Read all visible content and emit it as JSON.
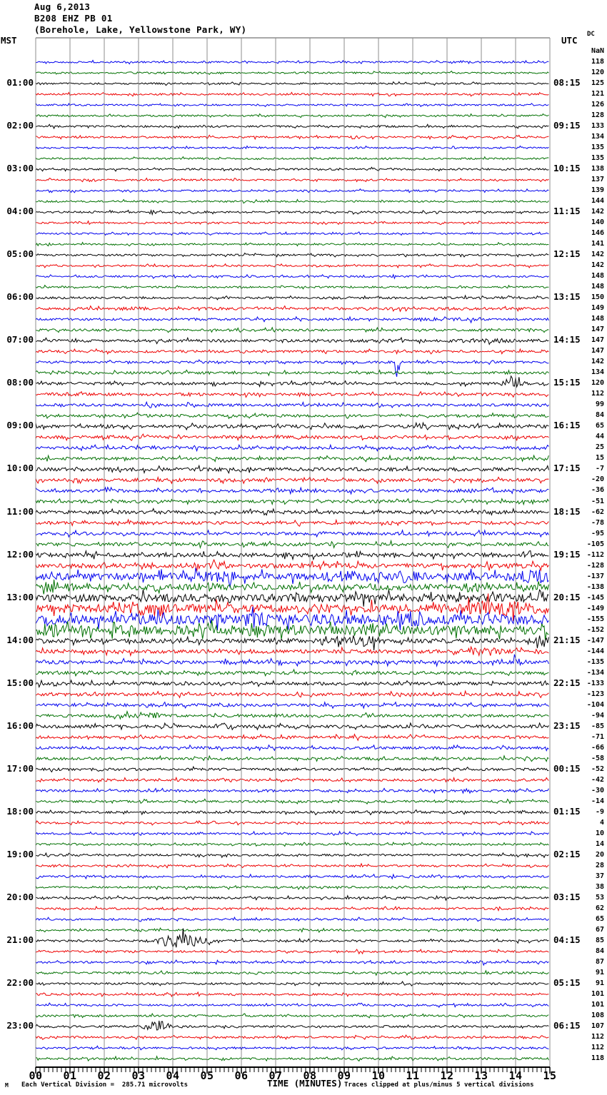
{
  "header": {
    "date": "Aug 6,2013",
    "station": "B208 EHZ PB 01",
    "location": "(Borehole, Lake, Yellowstone Park, WY)"
  },
  "axes": {
    "left_tz": "MST",
    "right_tz": "UTC",
    "dc_header": "DC",
    "x_axis_label": "TIME (MINUTES)",
    "x_tick_labels": [
      "00",
      "01",
      "02",
      "03",
      "04",
      "05",
      "06",
      "07",
      "08",
      "09",
      "10",
      "11",
      "12",
      "13",
      "14",
      "15"
    ]
  },
  "footer": {
    "corner_mark": "M",
    "scale_note": "Each Vertical Division =  285.71 microvolts",
    "clip_note": "Traces clipped at plus/minus 5 vertical divisions"
  },
  "colors": {
    "black": "#000000",
    "red": "#ee0000",
    "blue": "#0000ee",
    "green": "#007000",
    "grid": "#8c8c8c",
    "axis": "#000000"
  },
  "chart_data": {
    "type": "line",
    "subtype": "seismogram-helicorder",
    "title": "B208 EHZ PB 01 (Borehole, Lake, Yellowstone Park, WY) Aug 6,2013",
    "xlabel": "TIME (MINUTES)",
    "x_range": [
      0,
      15
    ],
    "minutes_per_line": 15,
    "left_time_zone": "MST",
    "right_time_zone": "UTC",
    "trace_color_cycle": [
      "black",
      "red",
      "blue",
      "green"
    ],
    "clip_divisions": 5,
    "microvolts_per_division": "285.71",
    "rows": [
      {
        "c": "r",
        "dc": "NaN",
        "amp": 0
      },
      {
        "c": "b",
        "dc": "118",
        "amp": 1.2
      },
      {
        "c": "g",
        "dc": "120",
        "amp": 1.2
      },
      {
        "c": "k",
        "dc": "125",
        "amp": 1.2,
        "l": "01:00",
        "rt": "08:15"
      },
      {
        "c": "r",
        "dc": "121",
        "amp": 1.2
      },
      {
        "c": "b",
        "dc": "126",
        "amp": 1.2
      },
      {
        "c": "g",
        "dc": "128",
        "amp": 1.2
      },
      {
        "c": "k",
        "dc": "133",
        "amp": 1.3,
        "l": "02:00",
        "rt": "09:15"
      },
      {
        "c": "r",
        "dc": "134",
        "amp": 1.3,
        "ev": [
          [
            9.3,
            0.15,
            3
          ]
        ]
      },
      {
        "c": "b",
        "dc": "135",
        "amp": 1.2
      },
      {
        "c": "g",
        "dc": "135",
        "amp": 1.2
      },
      {
        "c": "k",
        "dc": "138",
        "amp": 1.3,
        "l": "03:00",
        "rt": "10:15"
      },
      {
        "c": "r",
        "dc": "137",
        "amp": 1.2
      },
      {
        "c": "b",
        "dc": "139",
        "amp": 1.2
      },
      {
        "c": "g",
        "dc": "144",
        "amp": 1.2
      },
      {
        "c": "k",
        "dc": "142",
        "amp": 1.3,
        "l": "04:00",
        "rt": "11:15",
        "ev": [
          [
            3.4,
            0.08,
            5
          ]
        ]
      },
      {
        "c": "r",
        "dc": "140",
        "amp": 1.2,
        "ev": [
          [
            8.3,
            0.1,
            3
          ]
        ]
      },
      {
        "c": "b",
        "dc": "146",
        "amp": 1.2
      },
      {
        "c": "g",
        "dc": "141",
        "amp": 1.2
      },
      {
        "c": "k",
        "dc": "142",
        "amp": 1.3,
        "l": "05:00",
        "rt": "12:15"
      },
      {
        "c": "r",
        "dc": "142",
        "amp": 1.3
      },
      {
        "c": "b",
        "dc": "148",
        "amp": 1.3
      },
      {
        "c": "g",
        "dc": "148",
        "amp": 1.3
      },
      {
        "c": "k",
        "dc": "150",
        "amp": 1.5,
        "l": "06:00",
        "rt": "13:15"
      },
      {
        "c": "r",
        "dc": "149",
        "amp": 1.8,
        "ev": [
          [
            2.5,
            1.2,
            2.5
          ],
          [
            12.5,
            1.5,
            2.5
          ]
        ]
      },
      {
        "c": "b",
        "dc": "148",
        "amp": 1.6,
        "ev": [
          [
            12,
            1.2,
            2.5
          ]
        ]
      },
      {
        "c": "g",
        "dc": "147",
        "amp": 1.6,
        "ev": [
          [
            13,
            1,
            2
          ]
        ]
      },
      {
        "c": "k",
        "dc": "147",
        "amp": 2,
        "l": "07:00",
        "rt": "14:15",
        "ev": [
          [
            10,
            2.5,
            2.5
          ],
          [
            13.2,
            0.8,
            3.5
          ]
        ]
      },
      {
        "c": "r",
        "dc": "147",
        "amp": 1.7,
        "ev": [
          [
            5.2,
            0.15,
            2.5
          ],
          [
            12.3,
            0.6,
            2
          ]
        ]
      },
      {
        "c": "b",
        "dc": "142",
        "amp": 1.6,
        "ev": [
          [
            10.55,
            0.05,
            27,
            -1
          ]
        ]
      },
      {
        "c": "g",
        "dc": "134",
        "amp": 1.8,
        "ev": [
          [
            1.5,
            1,
            2
          ]
        ]
      },
      {
        "c": "k",
        "dc": "120",
        "amp": 1.9,
        "l": "08:00",
        "rt": "15:15",
        "ev": [
          [
            13.95,
            0.2,
            12
          ]
        ]
      },
      {
        "c": "r",
        "dc": "112",
        "amp": 2,
        "ev": [
          [
            0.8,
            0.8,
            2.5
          ]
        ]
      },
      {
        "c": "b",
        "dc": "99",
        "amp": 1.9,
        "ev": [
          [
            5.8,
            0.7,
            2
          ]
        ]
      },
      {
        "c": "g",
        "dc": "84",
        "amp": 1.9
      },
      {
        "c": "k",
        "dc": "65",
        "amp": 2.2,
        "l": "09:00",
        "rt": "16:15",
        "ev": [
          [
            11,
            1.2,
            2.5
          ]
        ]
      },
      {
        "c": "r",
        "dc": "44",
        "amp": 2.2
      },
      {
        "c": "b",
        "dc": "25",
        "amp": 2
      },
      {
        "c": "g",
        "dc": "15",
        "amp": 2
      },
      {
        "c": "k",
        "dc": "-7",
        "amp": 2.4,
        "l": "10:00",
        "rt": "17:15",
        "ev": [
          [
            8,
            1.2,
            2
          ]
        ]
      },
      {
        "c": "r",
        "dc": "-20",
        "amp": 2.2
      },
      {
        "c": "b",
        "dc": "-36",
        "amp": 2.2
      },
      {
        "c": "g",
        "dc": "-51",
        "amp": 2.2
      },
      {
        "c": "k",
        "dc": "-62",
        "amp": 2.4,
        "l": "11:00",
        "rt": "18:15",
        "ev": [
          [
            1.2,
            1.2,
            2
          ],
          [
            11,
            1.2,
            2
          ]
        ]
      },
      {
        "c": "r",
        "dc": "-78",
        "amp": 2.2
      },
      {
        "c": "b",
        "dc": "-95",
        "amp": 2.2
      },
      {
        "c": "g",
        "dc": "-105",
        "amp": 2.3
      },
      {
        "c": "k",
        "dc": "-112",
        "amp": 2.8,
        "l": "12:00",
        "rt": "19:15"
      },
      {
        "c": "r",
        "dc": "-128",
        "amp": 3.2,
        "ev": [
          [
            5,
            0.8,
            5
          ]
        ]
      },
      {
        "c": "b",
        "dc": "-137",
        "amp": 5,
        "ev": [
          [
            5.3,
            0.8,
            8
          ],
          [
            9,
            0.9,
            8
          ],
          [
            10.8,
            0.5,
            10
          ],
          [
            14.6,
            0.8,
            10
          ]
        ]
      },
      {
        "c": "g",
        "dc": "-138",
        "amp": 4,
        "ev": [
          [
            0.6,
            0.5,
            8
          ],
          [
            5,
            0.5,
            6
          ],
          [
            10,
            0.5,
            6
          ],
          [
            12.7,
            0.3,
            9
          ]
        ]
      },
      {
        "c": "k",
        "dc": "-145",
        "amp": 5.5,
        "l": "13:00",
        "rt": "20:15",
        "ev": [
          [
            7.5,
            2.2,
            5
          ],
          [
            14.8,
            0.5,
            12
          ]
        ]
      },
      {
        "c": "r",
        "dc": "-149",
        "amp": 6,
        "ev": [
          [
            3,
            0.35,
            10
          ],
          [
            5.3,
            0.6,
            7
          ],
          [
            13.5,
            1.1,
            11
          ]
        ]
      },
      {
        "c": "b",
        "dc": "-155",
        "amp": 7,
        "ev": [
          [
            2.8,
            0.35,
            12
          ],
          [
            6.4,
            0.4,
            13
          ],
          [
            11,
            0.5,
            12
          ]
        ]
      },
      {
        "c": "g",
        "dc": "-152",
        "amp": 6.5,
        "ev": [
          [
            0.5,
            0.5,
            10
          ],
          [
            6.5,
            0.4,
            12
          ],
          [
            9.8,
            0.5,
            10
          ],
          [
            12.8,
            0.25,
            9
          ]
        ]
      },
      {
        "c": "k",
        "dc": "-147",
        "amp": 3,
        "l": "14:00",
        "rt": "21:15",
        "ev": [
          [
            9.5,
            0.7,
            8
          ],
          [
            14.9,
            0.3,
            9
          ]
        ]
      },
      {
        "c": "r",
        "dc": "-144",
        "amp": 2.6,
        "ev": [
          [
            0.7,
            0.6,
            3
          ],
          [
            13,
            0.7,
            6
          ],
          [
            14.8,
            0.3,
            4
          ]
        ]
      },
      {
        "c": "b",
        "dc": "-135",
        "amp": 2.4,
        "ev": [
          [
            14,
            0.5,
            6
          ]
        ]
      },
      {
        "c": "g",
        "dc": "-134",
        "amp": 2.2
      },
      {
        "c": "k",
        "dc": "-133",
        "amp": 2.2,
        "l": "15:00",
        "rt": "22:15",
        "ev": [
          [
            14.8,
            0.5,
            3
          ]
        ]
      },
      {
        "c": "r",
        "dc": "-123",
        "amp": 2.2,
        "ev": [
          [
            0.6,
            0.6,
            2.5
          ]
        ]
      },
      {
        "c": "b",
        "dc": "-104",
        "amp": 2
      },
      {
        "c": "g",
        "dc": "-94",
        "amp": 2,
        "ev": [
          [
            3,
            1.2,
            3
          ],
          [
            3.45,
            0.15,
            7
          ]
        ]
      },
      {
        "c": "k",
        "dc": "-85",
        "amp": 2.2,
        "l": "16:00",
        "rt": "23:15",
        "ev": [
          [
            5.4,
            0.25,
            6
          ]
        ]
      },
      {
        "c": "r",
        "dc": "-71",
        "amp": 2
      },
      {
        "c": "b",
        "dc": "-66",
        "amp": 1.8
      },
      {
        "c": "g",
        "dc": "-58",
        "amp": 1.8
      },
      {
        "c": "k",
        "dc": "-52",
        "amp": 1.8,
        "l": "17:00",
        "rt": "00:15"
      },
      {
        "c": "r",
        "dc": "-42",
        "amp": 1.7
      },
      {
        "c": "b",
        "dc": "-30",
        "amp": 1.6
      },
      {
        "c": "g",
        "dc": "-14",
        "amp": 1.6
      },
      {
        "c": "k",
        "dc": "-9",
        "amp": 1.7,
        "l": "18:00",
        "rt": "01:15"
      },
      {
        "c": "r",
        "dc": "4",
        "amp": 1.4
      },
      {
        "c": "b",
        "dc": "10",
        "amp": 1.4
      },
      {
        "c": "g",
        "dc": "14",
        "amp": 1.4
      },
      {
        "c": "k",
        "dc": "20",
        "amp": 1.5,
        "l": "19:00",
        "rt": "02:15"
      },
      {
        "c": "r",
        "dc": "28",
        "amp": 1.4
      },
      {
        "c": "b",
        "dc": "37",
        "amp": 1.4
      },
      {
        "c": "g",
        "dc": "38",
        "amp": 1.4
      },
      {
        "c": "k",
        "dc": "53",
        "amp": 1.5,
        "l": "20:00",
        "rt": "03:15"
      },
      {
        "c": "r",
        "dc": "62",
        "amp": 1.4
      },
      {
        "c": "b",
        "dc": "65",
        "amp": 1.4
      },
      {
        "c": "g",
        "dc": "67",
        "amp": 1.4
      },
      {
        "c": "k",
        "dc": "85",
        "amp": 1.5,
        "l": "21:00",
        "rt": "04:15",
        "ev": [
          [
            4.2,
            0.55,
            10
          ]
        ]
      },
      {
        "c": "r",
        "dc": "84",
        "amp": 1.4
      },
      {
        "c": "b",
        "dc": "87",
        "amp": 1.4,
        "ev": [
          [
            13,
            0.25,
            2.5
          ]
        ]
      },
      {
        "c": "g",
        "dc": "91",
        "amp": 1.5
      },
      {
        "c": "k",
        "dc": "91",
        "amp": 1.4,
        "l": "22:00",
        "rt": "05:15"
      },
      {
        "c": "r",
        "dc": "101",
        "amp": 1.4
      },
      {
        "c": "b",
        "dc": "101",
        "amp": 1.4
      },
      {
        "c": "g",
        "dc": "108",
        "amp": 1.4
      },
      {
        "c": "k",
        "dc": "107",
        "amp": 1.5,
        "l": "23:00",
        "rt": "06:15",
        "ev": [
          [
            3.5,
            0.3,
            9
          ]
        ]
      },
      {
        "c": "r",
        "dc": "112",
        "amp": 1.5
      },
      {
        "c": "b",
        "dc": "112",
        "amp": 1.4
      },
      {
        "c": "g",
        "dc": "118",
        "amp": 1.5
      }
    ]
  }
}
